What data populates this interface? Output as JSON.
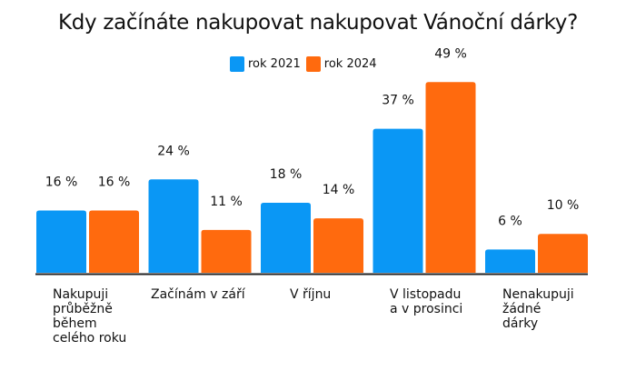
{
  "chart_data": {
    "type": "bar",
    "title": "Kdy začínáte nakupovat nakupovat Vánoční dárky?",
    "categories": [
      "Nakupuji\nprůběžně\nběhem\ncelého roku",
      "Začínám v září",
      "V říjnu",
      "V listopadu\na v prosinci",
      "Nenakupuji\nžádné\ndárky"
    ],
    "series": [
      {
        "name": "rok 2021",
        "color": "#0A97F5",
        "values": [
          16,
          24,
          18,
          37,
          6
        ],
        "labels": [
          "16 %",
          "24 %",
          "18 %",
          "37 %",
          "6 %"
        ]
      },
      {
        "name": "rok 2024",
        "color": "#FF6A0E",
        "values": [
          16,
          11,
          14,
          49,
          10
        ],
        "labels": [
          "16 %",
          "11 %",
          "14 %",
          "49 %",
          "10 %"
        ]
      }
    ],
    "ylim": [
      0,
      50
    ],
    "grid": false,
    "legend_position": "top-center",
    "unit": "%"
  }
}
